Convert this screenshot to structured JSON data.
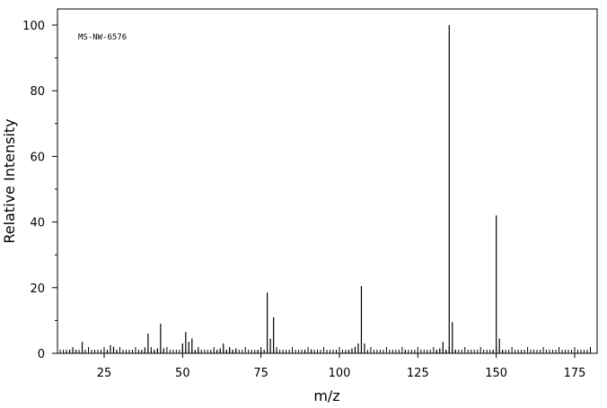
{
  "chart_data": {
    "type": "bar",
    "title": "",
    "annotation": "MS-NW-6576",
    "xlabel": "m/z",
    "ylabel": "Relative Intensity",
    "xlim": [
      10,
      180
    ],
    "ylim": [
      0,
      100
    ],
    "x_ticks": [
      25,
      50,
      75,
      100,
      125,
      150,
      175
    ],
    "y_ticks": [
      0,
      20,
      40,
      60,
      80,
      100
    ],
    "grid": false,
    "bar_color": "#000000",
    "peaks": [
      [
        13,
        0.5
      ],
      [
        14,
        1.0
      ],
      [
        15,
        1.5
      ],
      [
        16,
        1.0
      ],
      [
        18,
        3.5
      ],
      [
        26,
        1.0
      ],
      [
        27,
        2.5
      ],
      [
        28,
        2.0
      ],
      [
        29,
        1.0
      ],
      [
        37,
        0.8
      ],
      [
        38,
        1.8
      ],
      [
        39,
        6.0
      ],
      [
        40,
        0.8
      ],
      [
        41,
        1.0
      ],
      [
        42,
        1.5
      ],
      [
        43,
        9.0
      ],
      [
        44,
        1.5
      ],
      [
        50,
        3.0
      ],
      [
        51,
        6.5
      ],
      [
        52,
        3.5
      ],
      [
        53,
        4.5
      ],
      [
        54,
        0.8
      ],
      [
        55,
        1.2
      ],
      [
        60,
        0.5
      ],
      [
        61,
        1.0
      ],
      [
        62,
        1.5
      ],
      [
        63,
        3.0
      ],
      [
        64,
        1.0
      ],
      [
        65,
        1.5
      ],
      [
        66,
        1.0
      ],
      [
        67,
        1.5
      ],
      [
        74,
        1.0
      ],
      [
        75,
        1.0
      ],
      [
        76,
        1.0
      ],
      [
        77,
        18.5
      ],
      [
        78,
        4.5
      ],
      [
        79,
        11.0
      ],
      [
        80,
        0.8
      ],
      [
        89,
        1.0
      ],
      [
        91,
        1.2
      ],
      [
        102,
        0.5
      ],
      [
        103,
        1.0
      ],
      [
        104,
        1.5
      ],
      [
        105,
        2.0
      ],
      [
        106,
        3.0
      ],
      [
        107,
        20.5
      ],
      [
        108,
        3.0
      ],
      [
        121,
        1.0
      ],
      [
        131,
        1.0
      ],
      [
        132,
        1.5
      ],
      [
        133,
        3.5
      ],
      [
        134,
        1.0
      ],
      [
        135,
        100
      ],
      [
        136,
        9.5
      ],
      [
        137,
        1.0
      ],
      [
        149,
        1.0
      ],
      [
        150,
        42.0
      ],
      [
        151,
        4.5
      ],
      [
        152,
        0.8
      ]
    ]
  }
}
